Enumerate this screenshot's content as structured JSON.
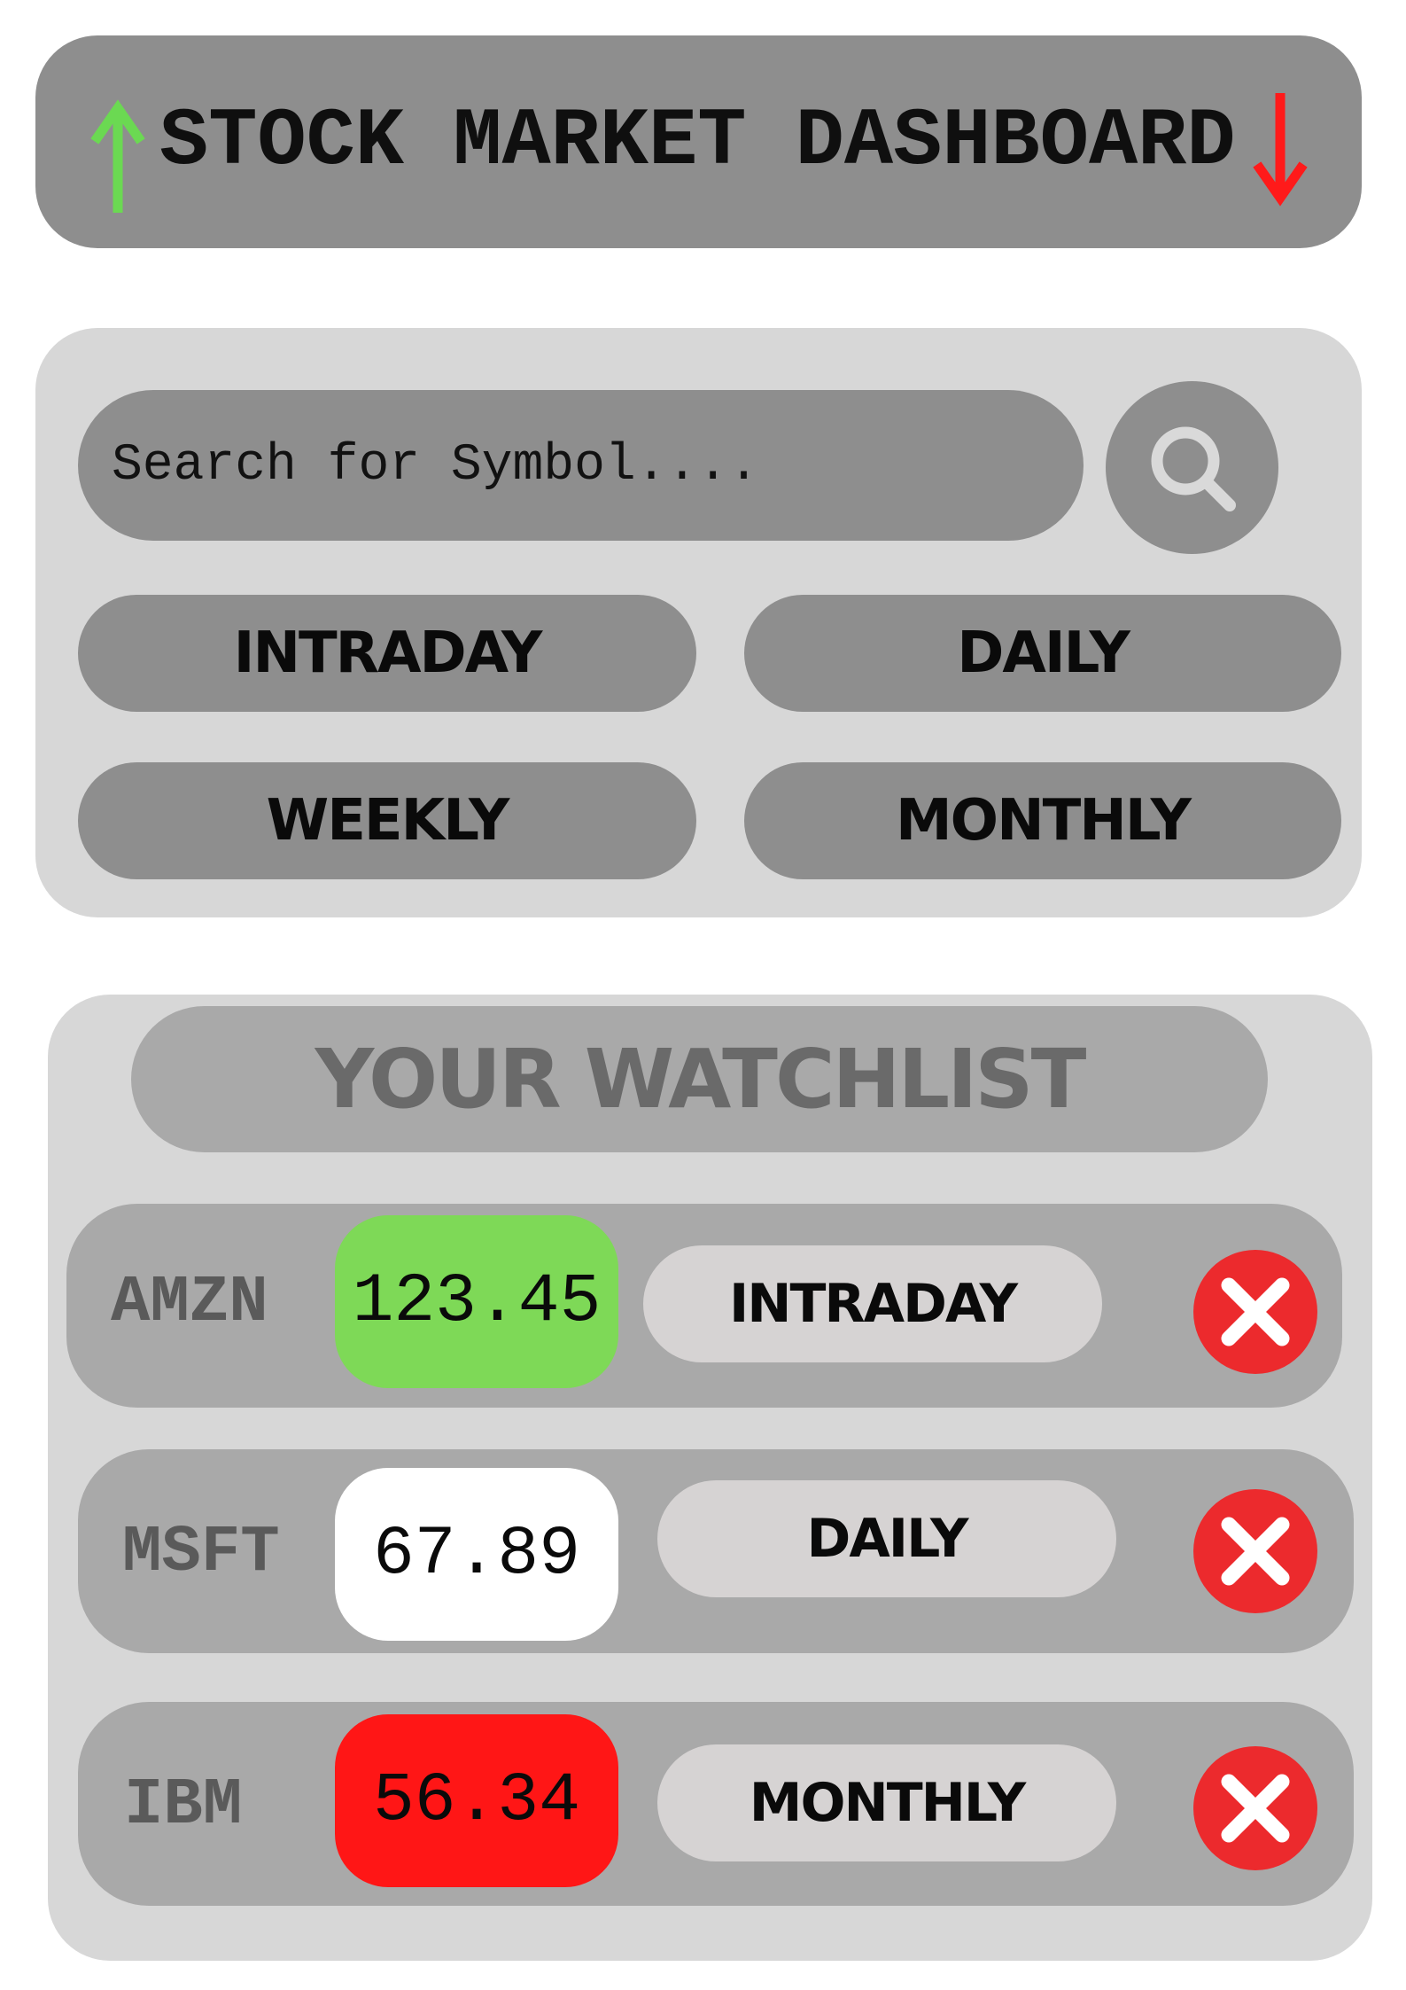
{
  "header": {
    "title": "STOCK MARKET DASHBOARD",
    "up_arrow_color": "#6bd952",
    "down_arrow_color": "#ff1a1a"
  },
  "search": {
    "placeholder": "Search for Symbol....",
    "button_icon": "search-icon"
  },
  "intervals": [
    {
      "label": "INTRADAY"
    },
    {
      "label": "DAILY"
    },
    {
      "label": "WEEKLY"
    },
    {
      "label": "MONTHLY"
    }
  ],
  "watchlist": {
    "title": "YOUR WATCHLIST",
    "rows": [
      {
        "symbol": "AMZN",
        "price": "123.45",
        "price_color": "#7ed957",
        "interval": "INTRADAY",
        "remove_icon": "close-icon"
      },
      {
        "symbol": "MSFT",
        "price": "67.89",
        "price_color": "#ffffff",
        "interval": "DAILY",
        "remove_icon": "close-icon"
      },
      {
        "symbol": "IBM",
        "price": "56.34",
        "price_color": "#ff1616",
        "interval": "MONTHLY",
        "remove_icon": "close-icon"
      }
    ]
  },
  "colors": {
    "panel": "#d7d7d7",
    "button": "#8e8e8e",
    "remove": "#ec2a2d"
  }
}
